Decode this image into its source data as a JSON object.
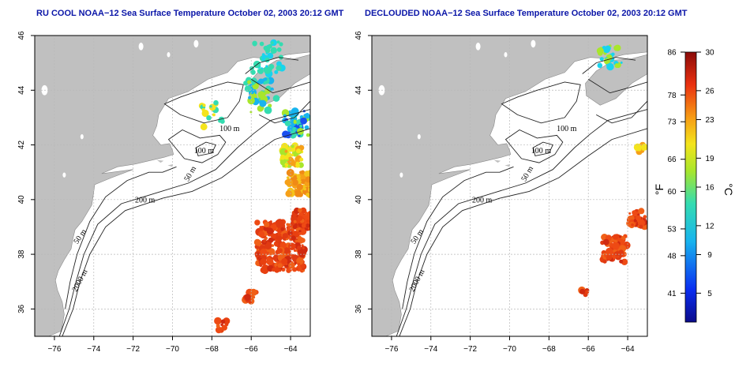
{
  "panels": [
    {
      "title": "RU COOL NOAA−12 Sea Surface Temperature October 02, 2003 20:12 GMT",
      "cloud_masked": false
    },
    {
      "title": "DECLOUDED NOAA−12 Sea Surface Temperature October 02, 2003 20:12 GMT",
      "cloud_masked": true
    }
  ],
  "map": {
    "lon_range": [
      -77,
      -63
    ],
    "lat_range": [
      35,
      46
    ],
    "lon_ticks": [
      "−76",
      "−74",
      "−72",
      "−70",
      "−68",
      "−66",
      "−64"
    ],
    "lat_ticks": [
      "46",
      "44",
      "42",
      "40",
      "38",
      "36"
    ],
    "contour_labels": [
      "100 m",
      "100 m",
      "50 m",
      "200 m",
      "50 m",
      "2000 m"
    ],
    "land_color": "#c0c0c0",
    "grid": true
  },
  "colorbar": {
    "celsius_ticks": [
      "30",
      "26",
      "23",
      "19",
      "16",
      "12",
      "9",
      "5"
    ],
    "fahrenheit_ticks": [
      "86",
      "78",
      "73",
      "66",
      "60",
      "53",
      "48",
      "41"
    ],
    "fahrenheit_label": "°F",
    "celsius_label": "°C",
    "range_c": [
      2,
      30
    ]
  }
}
